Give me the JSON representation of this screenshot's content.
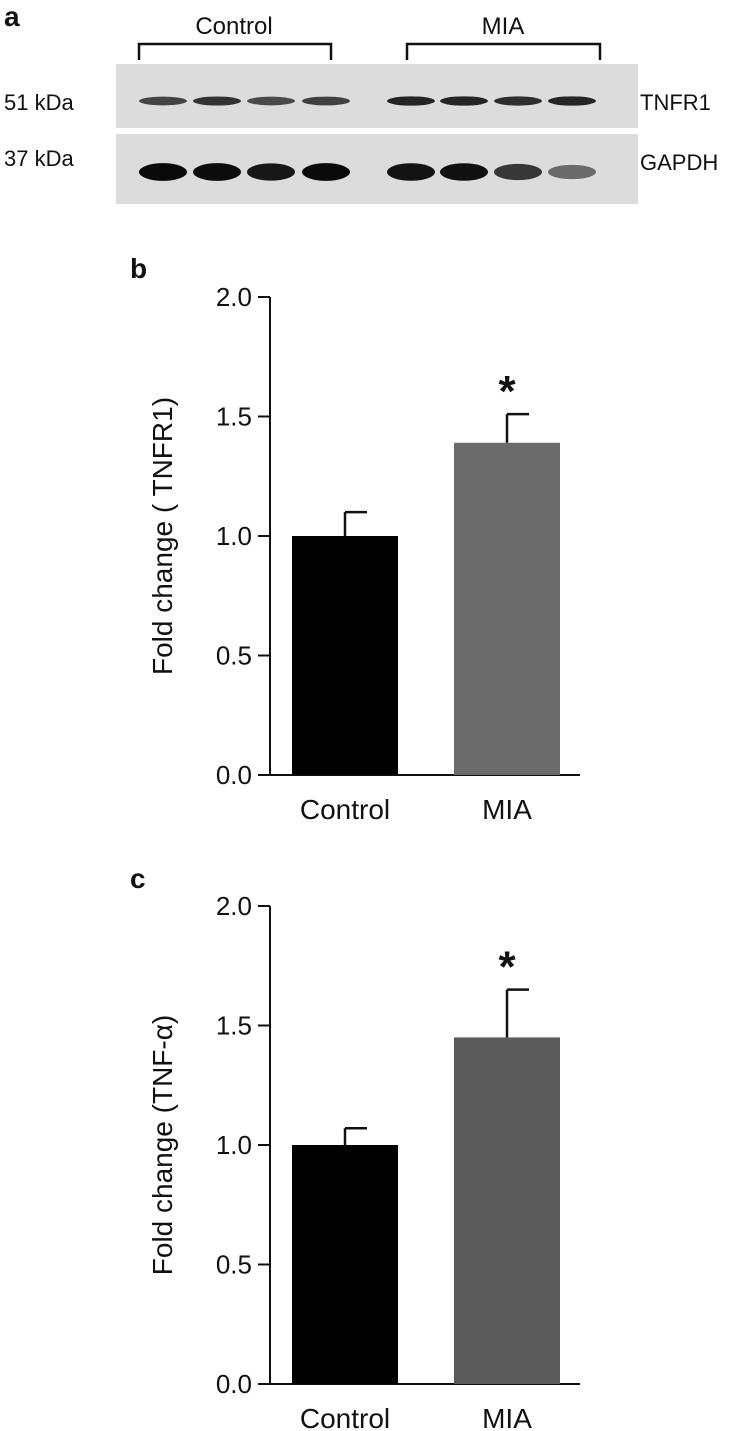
{
  "panel_a": {
    "label": "a",
    "groups": [
      "Control",
      "MIA"
    ],
    "rows": [
      {
        "mw": "51 kDa",
        "protein": "TNFR1",
        "band_intensity": [
          0.72,
          0.8,
          0.7,
          0.74,
          0.86,
          0.86,
          0.82,
          0.86
        ]
      },
      {
        "mw": "37 kDa",
        "protein": "GAPDH",
        "band_intensity": [
          0.98,
          0.97,
          0.92,
          0.98,
          0.94,
          0.95,
          0.78,
          0.55
        ]
      }
    ]
  },
  "chart_data": [
    {
      "panel": "b",
      "type": "bar",
      "categories": [
        "Control",
        "MIA"
      ],
      "values": [
        1.0,
        1.39
      ],
      "errors": [
        0.1,
        0.12
      ],
      "significance": [
        "",
        "*"
      ],
      "colors": [
        "#000000",
        "#6b6b6b"
      ],
      "ylabel": "Fold change ( TNFR1)",
      "ylim": [
        0,
        2.0
      ],
      "yticks": [
        "0.0",
        "0.5",
        "1.0",
        "1.5",
        "2.0"
      ],
      "grid": false
    },
    {
      "panel": "c",
      "type": "bar",
      "categories": [
        "Control",
        "MIA"
      ],
      "values": [
        1.0,
        1.45
      ],
      "errors": [
        0.07,
        0.2
      ],
      "significance": [
        "",
        "*"
      ],
      "colors": [
        "#000000",
        "#5a5a5a"
      ],
      "ylabel": "Fold change (TNF-α)",
      "ylim": [
        0,
        2.0
      ],
      "yticks": [
        "0.0",
        "0.5",
        "1.0",
        "1.5",
        "2.0"
      ],
      "grid": false
    }
  ]
}
